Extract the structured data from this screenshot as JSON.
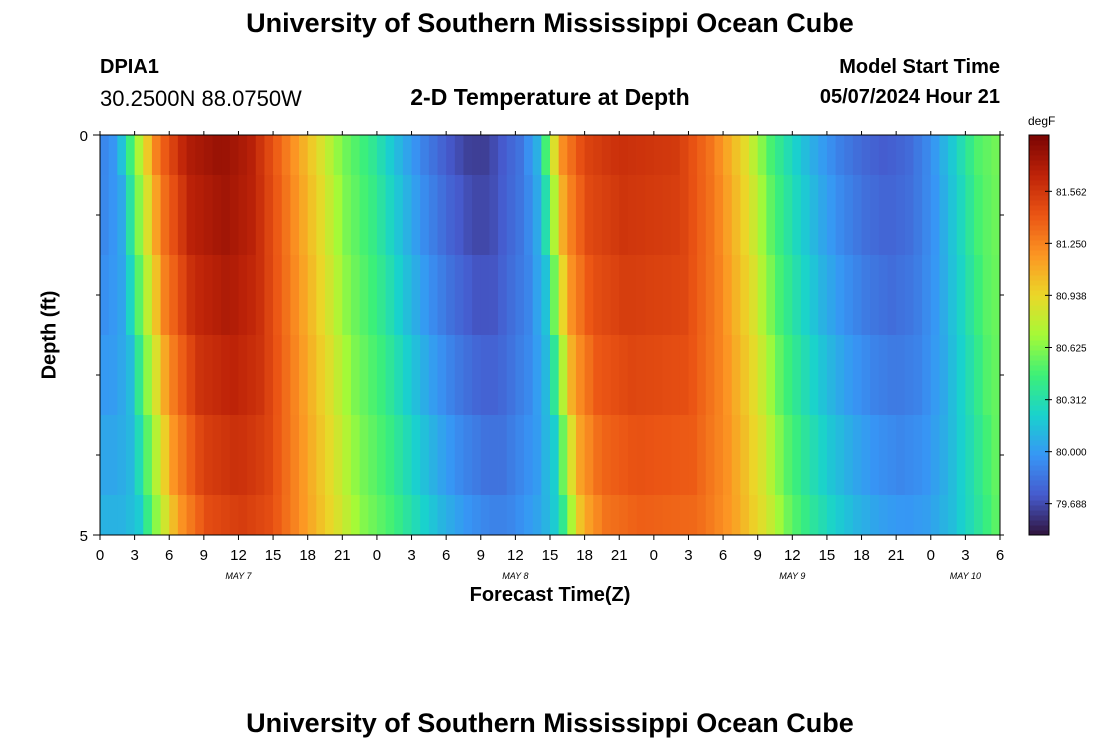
{
  "header": {
    "title": "University of Southern Mississippi Ocean Cube",
    "station_id": "DPIA1",
    "coordinates": "30.2500N  88.0750W",
    "subtitle": "2-D Temperature at Depth",
    "model_start_label": "Model Start Time",
    "model_start_value": "05/07/2024 Hour 21"
  },
  "footer": {
    "title": "University of Southern Mississippi Ocean Cube"
  },
  "chart_data": {
    "type": "heatmap",
    "title": "2-D Temperature at Depth",
    "xlabel": "Forecast Time(Z)",
    "ylabel": "Depth (ft)",
    "x_range_hours": [
      0,
      78
    ],
    "y_range_ft": [
      0,
      5
    ],
    "y_ticks": [
      "0",
      "5"
    ],
    "x_tick_labels": [
      "0",
      "3",
      "6",
      "9",
      "12",
      "15",
      "18",
      "21",
      "0",
      "3",
      "6",
      "9",
      "12",
      "15",
      "18",
      "21",
      "0",
      "3",
      "6",
      "9",
      "12",
      "15",
      "18",
      "21",
      "0",
      "3",
      "6"
    ],
    "date_labels": [
      {
        "label": "MAY 7",
        "hour": 12
      },
      {
        "label": "MAY 8",
        "hour": 36
      },
      {
        "label": "MAY 9",
        "hour": 60
      },
      {
        "label": "MAY 10",
        "hour": 75
      }
    ],
    "depth_levels": [
      "0-0.5",
      "0.5-1.5",
      "1.5-2.5",
      "2.5-3.5",
      "3.5-4.5",
      "4.5-5"
    ],
    "colorbar": {
      "unit": "degF",
      "min": 79.5,
      "max": 81.9,
      "ticks": [
        "81.562",
        "81.250",
        "80.938",
        "80.625",
        "80.312",
        "80.000",
        "79.688"
      ]
    },
    "temperature_profile": {
      "hours": [
        0,
        1.5,
        3,
        5,
        7.5,
        10.5,
        13,
        16,
        19,
        21,
        23.5,
        26,
        28,
        30,
        32,
        33.5,
        36.5,
        38,
        39,
        40,
        42,
        45,
        50,
        53,
        56,
        58,
        60,
        62,
        64,
        66,
        68,
        70,
        72,
        74,
        76,
        78
      ],
      "surface_degF": [
        79.9,
        80.0,
        80.6,
        81.3,
        81.7,
        81.8,
        81.7,
        81.3,
        80.9,
        80.6,
        80.4,
        80.1,
        79.9,
        79.75,
        79.65,
        79.65,
        79.85,
        80.1,
        80.7,
        81.2,
        81.5,
        81.6,
        81.55,
        81.3,
        80.9,
        80.5,
        80.25,
        80.05,
        79.9,
        79.8,
        79.75,
        79.8,
        79.95,
        80.2,
        80.5,
        80.6
      ]
    }
  }
}
